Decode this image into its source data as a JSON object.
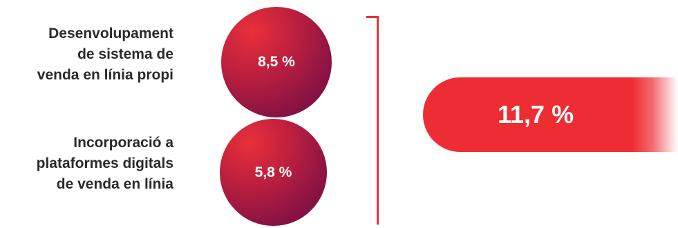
{
  "chart_data": {
    "type": "bubble",
    "items": [
      {
        "label_lines": [
          "Desenvolupament",
          "de sistema de",
          "venda en línia propi"
        ],
        "value_label": "8,5 %",
        "value": 8.5
      },
      {
        "label_lines": [
          "Incorporació a",
          "plataformes digitals",
          "de venda en línia"
        ],
        "value_label": "5,8 %",
        "value": 5.8
      }
    ],
    "total": {
      "value_label": "11,7 %",
      "value": 11.7
    },
    "colors": {
      "accent": "#e8303a",
      "bubble_dark": "#6a0a40",
      "total_fill": "#ed2d33",
      "label_text": "#2a2a2a"
    }
  }
}
